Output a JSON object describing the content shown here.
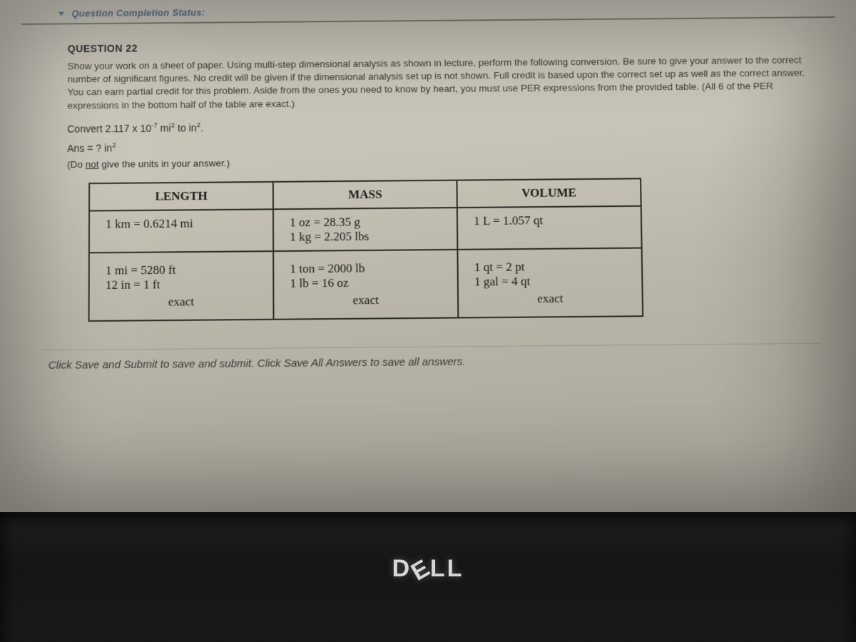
{
  "status_bar": {
    "label": "Question Completion Status:"
  },
  "question": {
    "heading": "QUESTION 22",
    "body": "Show your work on a sheet of paper. Using multi-step dimensional analysis as shown in lecture, perform the following conversion. Be sure to give your answer to the correct number of significant figures. No credit will be given if the dimensional analysis set up is not shown. Full credit is based upon the correct set up as well as the correct answer. You can earn partial credit for this problem. Aside from the ones you need to know by heart, you must use PER expressions from the provided table. (All 6 of the PER expressions in the bottom half of the table are exact.)",
    "convert_prefix": "Convert 2.117 x 10",
    "convert_exp": "-7",
    "convert_mid": " mi",
    "convert_sq1": "2",
    "convert_to": " to in",
    "convert_sq2": "2",
    "convert_end": ".",
    "ans_prefix": "Ans = ? in",
    "ans_sq": "2",
    "note_prefix": "(Do ",
    "note_underlined": "not",
    "note_suffix": " give the units in your answer.)"
  },
  "table": {
    "headers": {
      "c1": "LENGTH",
      "c2": "MASS",
      "c3": "VOLUME"
    },
    "row1": {
      "c1": "1 km  =  0.6214 mi",
      "c2a": "1 oz   =   28.35 g",
      "c2b": "1 kg   =   2.205 lbs",
      "c3": "1 L   =   1.057 qt"
    },
    "row2": {
      "c1a": "1 mi  =  5280 ft",
      "c1b": "12 in  =  1 ft",
      "c2a": "1 ton  =  2000 lb",
      "c2b": "1 lb   =   16 oz",
      "c3a": "1 qt   =     2 pt",
      "c3b": "1 gal  =     4 qt",
      "exact": "exact"
    }
  },
  "footer": {
    "text": "Click Save and Submit to save and submit. Click Save All Answers to save all answers."
  },
  "logo": {
    "d": "D",
    "e": "E",
    "ll": "LL"
  },
  "colors": {
    "screen_bg_top": "#c8c4b8",
    "screen_bg_bottom": "#a9a49a",
    "status_text": "#4a6585",
    "body_text": "#3b3a34",
    "table_border": "#2a2a26",
    "bezel": "#151515",
    "logo": "#d7d7d7"
  }
}
